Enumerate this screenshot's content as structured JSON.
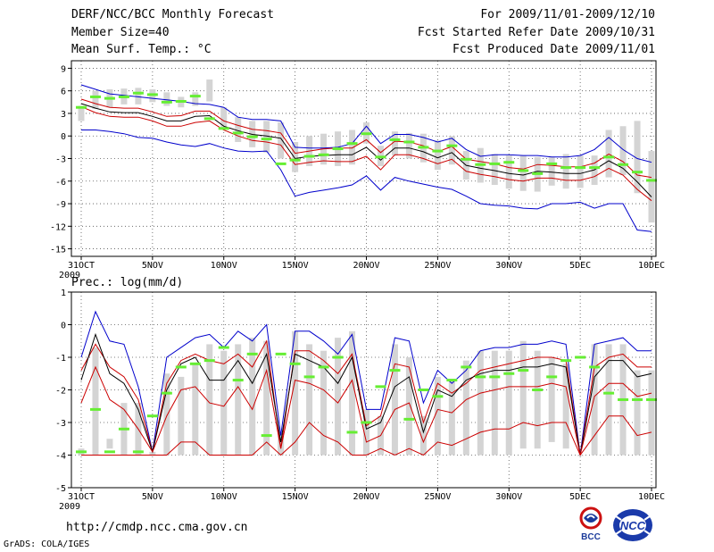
{
  "header": {
    "title": "DERF/NCC/BCC Monthly Forecast",
    "member_size": "Member Size=40",
    "variable": "Mean Surf. Temp.: °C",
    "period": "For 2009/11/01-2009/12/10",
    "fcst_started": "Fcst Started Refer Date 2009/10/31",
    "fcst_produced": "Fcst Produced Date 2009/11/01"
  },
  "footer": {
    "url": "http://cmdp.ncc.cma.gov.cn",
    "credit": "GrADS: COLA/IGES",
    "logo_bcc_text": "BCC",
    "logo_ncc_text": "NCC"
  },
  "colors": {
    "envelope": "#0000cc",
    "mean": "#000000",
    "spread": "#cc0000",
    "bar": "#d4d4d4",
    "observed": "#66ee33",
    "grid": "#000000"
  },
  "chart_data": [
    {
      "type": "line",
      "title": "Mean Surf. Temp.: °C",
      "ylabel": "°C",
      "ylim": [
        -16,
        10
      ],
      "yticks": [
        9,
        6,
        3,
        0,
        -3,
        -6,
        -9,
        -12,
        -15
      ],
      "ytick_labels": [
        "9",
        "6",
        "3",
        "0",
        "-3",
        "-6",
        "-9",
        "-12",
        "-15"
      ],
      "x": [
        0,
        1,
        2,
        3,
        4,
        5,
        6,
        7,
        8,
        9,
        10,
        11,
        12,
        13,
        14,
        15,
        16,
        17,
        18,
        19,
        20,
        21,
        22,
        23,
        24,
        25,
        26,
        27,
        28,
        29,
        30,
        31,
        32,
        33,
        34,
        35,
        36,
        37,
        38,
        39,
        40
      ],
      "xlim": [
        0,
        41
      ],
      "xticks": [
        0,
        5,
        10,
        15,
        20,
        25,
        30,
        35,
        40
      ],
      "xtick_labels": [
        "31OCT",
        "5NOV",
        "10NOV",
        "15NOV",
        "20NOV",
        "25NOV",
        "30NOV",
        "5DEC",
        "10DEC"
      ],
      "xtick_sublabel": "2009",
      "series": [
        {
          "name": "max",
          "color": "#0000cc",
          "values": [
            6.8,
            6.2,
            5.6,
            5.4,
            5.2,
            5.0,
            4.8,
            4.6,
            4.3,
            4.2,
            3.8,
            2.5,
            2.2,
            2.2,
            2.0,
            -1.5,
            -1.6,
            -1.6,
            -1.5,
            -1.0,
            1.3,
            -1.0,
            0.2,
            0.2,
            -0.2,
            -0.8,
            -0.3,
            -1.8,
            -2.7,
            -2.5,
            -2.5,
            -2.6,
            -2.6,
            -2.8,
            -2.8,
            -2.6,
            -1.8,
            -0.2,
            -1.8,
            -3.0,
            -3.5
          ]
        },
        {
          "name": "upper",
          "color": "#cc0000",
          "values": [
            4.9,
            4.3,
            3.8,
            3.7,
            3.7,
            3.2,
            2.6,
            2.7,
            3.3,
            3.3,
            2.0,
            1.4,
            0.9,
            0.7,
            0.4,
            -2.3,
            -2.0,
            -1.7,
            -1.6,
            -1.6,
            -0.5,
            -2.2,
            -0.7,
            -0.8,
            -1.3,
            -2.1,
            -1.4,
            -3.1,
            -3.4,
            -3.7,
            -4.2,
            -4.4,
            -3.8,
            -3.9,
            -4.1,
            -4.1,
            -3.6,
            -2.4,
            -3.4,
            -5.2,
            -5.5
          ]
        },
        {
          "name": "mean",
          "color": "#000000",
          "values": [
            4.3,
            3.7,
            3.2,
            3.1,
            3.1,
            2.6,
            2.0,
            2.0,
            2.6,
            2.7,
            1.3,
            0.7,
            0.2,
            0.0,
            -0.3,
            -3.0,
            -2.7,
            -2.6,
            -2.5,
            -2.5,
            -1.5,
            -3.2,
            -1.6,
            -1.6,
            -2.1,
            -2.9,
            -2.2,
            -3.9,
            -4.3,
            -4.6,
            -5.0,
            -5.2,
            -4.7,
            -4.8,
            -5.0,
            -5.0,
            -4.5,
            -3.3,
            -4.3,
            -6.1,
            -8.1
          ]
        },
        {
          "name": "lower",
          "color": "#cc0000",
          "values": [
            3.9,
            3.1,
            2.6,
            2.5,
            2.5,
            2.0,
            1.3,
            1.3,
            1.8,
            2.0,
            0.8,
            0.0,
            -0.6,
            -0.8,
            -1.2,
            -3.8,
            -3.5,
            -3.3,
            -3.4,
            -3.4,
            -2.7,
            -4.5,
            -2.5,
            -2.5,
            -3.0,
            -3.7,
            -3.1,
            -4.7,
            -5.1,
            -5.4,
            -5.8,
            -6.0,
            -5.6,
            -5.6,
            -5.9,
            -5.9,
            -5.4,
            -4.3,
            -5.2,
            -7.1,
            -8.6
          ]
        },
        {
          "name": "min",
          "color": "#0000cc",
          "values": [
            0.8,
            0.8,
            0.6,
            0.3,
            -0.2,
            -0.3,
            -0.8,
            -1.2,
            -1.4,
            -1.0,
            -1.6,
            -2.0,
            -2.1,
            -2.0,
            -4.5,
            -8.0,
            -7.5,
            -7.2,
            -6.9,
            -6.5,
            -5.3,
            -7.2,
            -5.5,
            -6.0,
            -6.4,
            -6.8,
            -7.1,
            -8.0,
            -9.0,
            -9.2,
            -9.3,
            -9.6,
            -9.7,
            -9.0,
            -9.0,
            -8.8,
            -9.6,
            -9.0,
            -9.0,
            -12.5,
            -12.7
          ]
        }
      ],
      "bars": {
        "name": "spread-box",
        "low": [
          2.0,
          3.6,
          3.8,
          4.2,
          4.2,
          4.5,
          4.0,
          3.8,
          4.0,
          4.6,
          1.0,
          -0.8,
          -1.5,
          -2.2,
          -3.0,
          -4.8,
          -4.0,
          -3.8,
          -4.0,
          -3.8,
          -1.0,
          -4.0,
          -2.6,
          -3.0,
          -3.5,
          -4.5,
          -3.8,
          -5.8,
          -6.2,
          -6.5,
          -7.0,
          -7.3,
          -7.4,
          -6.6,
          -7.0,
          -6.9,
          -6.5,
          -5.5,
          -5.2,
          -7.6,
          -11.5
        ],
        "high": [
          4.0,
          6.0,
          6.2,
          6.3,
          6.4,
          6.2,
          5.8,
          5.2,
          5.8,
          7.5,
          3.8,
          2.5,
          2.0,
          2.0,
          1.8,
          -0.8,
          0.0,
          0.3,
          0.6,
          0.8,
          1.8,
          -1.3,
          0.6,
          0.4,
          0.3,
          -0.6,
          0.0,
          -2.0,
          -1.6,
          -2.4,
          -2.6,
          -2.6,
          -2.8,
          -2.8,
          -2.4,
          -2.6,
          -2.6,
          0.8,
          1.3,
          2.0,
          -2.0
        ]
      },
      "observed": [
        3.8,
        5.2,
        5.0,
        5.2,
        5.7,
        5.5,
        4.5,
        4.6,
        5.3,
        2.3,
        1.0,
        0.4,
        -0.1,
        -0.4,
        -3.7,
        -3.2,
        -2.7,
        -2.5,
        -1.7,
        -1.0,
        0.3,
        -2.8,
        -0.5,
        -0.8,
        -1.5,
        -2.0,
        -1.3,
        -3.1,
        -3.8,
        -3.7,
        -3.5,
        -4.6,
        -5.0,
        -3.7,
        -4.2,
        -4.2,
        -4.2,
        -2.8,
        -3.8,
        -4.8,
        -5.9
      ]
    },
    {
      "type": "line",
      "title": "Prec.: log(mm/d)",
      "ylabel": "log(mm/d)",
      "ylim": [
        -5,
        1
      ],
      "yticks": [
        1,
        0,
        -1,
        -2,
        -3,
        -4,
        -5
      ],
      "ytick_labels": [
        "1",
        "0",
        "-1",
        "-2",
        "-3",
        "-4",
        "-5"
      ],
      "x": [
        0,
        1,
        2,
        3,
        4,
        5,
        6,
        7,
        8,
        9,
        10,
        11,
        12,
        13,
        14,
        15,
        16,
        17,
        18,
        19,
        20,
        21,
        22,
        23,
        24,
        25,
        26,
        27,
        28,
        29,
        30,
        31,
        32,
        33,
        34,
        35,
        36,
        37,
        38,
        39,
        40
      ],
      "xlim": [
        0,
        41
      ],
      "xticks": [
        0,
        5,
        10,
        15,
        20,
        25,
        30,
        35,
        40
      ],
      "xtick_labels": [
        "31OCT",
        "5NOV",
        "10NOV",
        "15NOV",
        "20NOV",
        "25NOV",
        "30NOV",
        "5DEC",
        "10DEC"
      ],
      "xtick_sublabel": "2009",
      "series": [
        {
          "name": "max",
          "color": "#0000cc",
          "values": [
            -1.0,
            0.4,
            -0.5,
            -0.6,
            -1.9,
            -3.9,
            -1.0,
            -0.7,
            -0.4,
            -0.3,
            -0.7,
            -0.2,
            -0.5,
            0.0,
            -3.4,
            -0.2,
            -0.2,
            -0.5,
            -0.9,
            -0.3,
            -2.6,
            -2.6,
            -0.4,
            -0.5,
            -2.4,
            -1.4,
            -1.8,
            -1.4,
            -0.8,
            -0.7,
            -0.7,
            -0.6,
            -0.6,
            -0.5,
            -0.6,
            -4.0,
            -0.6,
            -0.5,
            -0.4,
            -0.8,
            -0.8
          ]
        },
        {
          "name": "upper",
          "color": "#cc0000",
          "values": [
            -1.4,
            -0.6,
            -1.3,
            -1.6,
            -2.3,
            -3.9,
            -1.8,
            -1.1,
            -0.9,
            -1.1,
            -1.2,
            -0.9,
            -1.3,
            -0.5,
            -3.8,
            -0.8,
            -0.8,
            -1.1,
            -1.5,
            -0.9,
            -3.1,
            -2.8,
            -1.2,
            -1.3,
            -3.0,
            -1.8,
            -2.1,
            -1.8,
            -1.4,
            -1.3,
            -1.2,
            -1.1,
            -1.0,
            -1.0,
            -1.1,
            -4.0,
            -1.3,
            -1.0,
            -0.9,
            -1.3,
            -1.3
          ]
        },
        {
          "name": "mean",
          "color": "#000000",
          "values": [
            -1.7,
            -0.3,
            -1.5,
            -1.8,
            -2.6,
            -3.9,
            -2.0,
            -1.2,
            -1.0,
            -1.7,
            -1.7,
            -1.1,
            -1.8,
            -0.9,
            -3.6,
            -0.9,
            -1.1,
            -1.3,
            -1.8,
            -1.0,
            -3.2,
            -3.0,
            -1.9,
            -1.6,
            -3.3,
            -2.0,
            -2.2,
            -1.7,
            -1.5,
            -1.4,
            -1.4,
            -1.3,
            -1.3,
            -1.2,
            -1.3,
            -4.0,
            -1.6,
            -1.1,
            -1.1,
            -1.6,
            -1.5
          ]
        },
        {
          "name": "lower",
          "color": "#cc0000",
          "values": [
            -2.4,
            -1.3,
            -2.3,
            -2.6,
            -3.2,
            -3.9,
            -2.8,
            -2.0,
            -1.9,
            -2.4,
            -2.5,
            -1.9,
            -2.6,
            -1.4,
            -3.8,
            -1.7,
            -1.8,
            -2.0,
            -2.4,
            -1.7,
            -3.6,
            -3.4,
            -2.6,
            -2.4,
            -3.6,
            -2.6,
            -2.7,
            -2.3,
            -2.1,
            -2.0,
            -1.9,
            -1.9,
            -1.9,
            -1.8,
            -1.9,
            -4.0,
            -2.2,
            -1.8,
            -1.8,
            -2.2,
            -2.1
          ]
        },
        {
          "name": "min",
          "color": "#cc0000",
          "values": [
            -4.0,
            -4.0,
            -4.0,
            -4.0,
            -4.0,
            -4.0,
            -4.0,
            -3.6,
            -3.6,
            -4.0,
            -4.0,
            -4.0,
            -4.0,
            -3.6,
            -4.0,
            -3.6,
            -3.0,
            -3.4,
            -3.6,
            -4.0,
            -4.0,
            -3.8,
            -4.0,
            -3.8,
            -4.0,
            -3.6,
            -3.7,
            -3.5,
            -3.3,
            -3.2,
            -3.2,
            -3.0,
            -3.1,
            -3.0,
            -3.0,
            -4.0,
            -3.4,
            -2.8,
            -2.8,
            -3.4,
            -3.3
          ]
        }
      ],
      "bars": {
        "name": "spread-box",
        "low": [
          -4.0,
          -4.0,
          -3.8,
          -4.0,
          -4.0,
          -4.0,
          -4.0,
          -4.0,
          -4.0,
          -4.0,
          -4.0,
          -4.0,
          -4.0,
          -4.0,
          -4.0,
          -4.0,
          -4.0,
          -4.0,
          -4.0,
          -4.0,
          -4.0,
          -4.0,
          -4.0,
          -4.0,
          -4.0,
          -4.0,
          -4.0,
          -4.0,
          -4.0,
          -4.0,
          -4.0,
          -3.8,
          -3.8,
          -3.6,
          -3.8,
          -4.0,
          -4.0,
          -4.0,
          -4.0,
          -4.0,
          -4.0
        ],
        "high": [
          -3.8,
          -0.7,
          -3.5,
          -2.4,
          -2.4,
          -3.9,
          -1.5,
          -1.6,
          -1.2,
          -0.6,
          -0.8,
          -0.6,
          -0.4,
          -0.5,
          -3.4,
          -0.2,
          -0.6,
          -0.8,
          -0.4,
          -0.2,
          -2.6,
          -2.8,
          -0.6,
          -1.0,
          -2.8,
          -1.6,
          -1.7,
          -1.1,
          -0.8,
          -0.8,
          -0.8,
          -0.5,
          -0.8,
          -1.0,
          -1.2,
          -4.0,
          -0.6,
          -0.6,
          -0.6,
          -1.4,
          -1.4
        ]
      },
      "observed": [
        -3.9,
        -2.6,
        -3.9,
        -3.2,
        -3.9,
        -2.8,
        -2.1,
        -1.3,
        -1.2,
        -1.1,
        -0.7,
        -1.7,
        -0.9,
        -3.4,
        -0.9,
        -1.2,
        -1.6,
        -1.3,
        -1.0,
        -3.3,
        -3.0,
        -1.9,
        -1.4,
        -2.9,
        -2.0,
        -2.2,
        -1.7,
        -1.3,
        -1.6,
        -1.6,
        -1.5,
        -1.4,
        -2.0,
        -1.6,
        -1.1,
        -1.0,
        -1.3,
        -2.1,
        -2.3,
        -2.3,
        -2.3
      ]
    }
  ]
}
